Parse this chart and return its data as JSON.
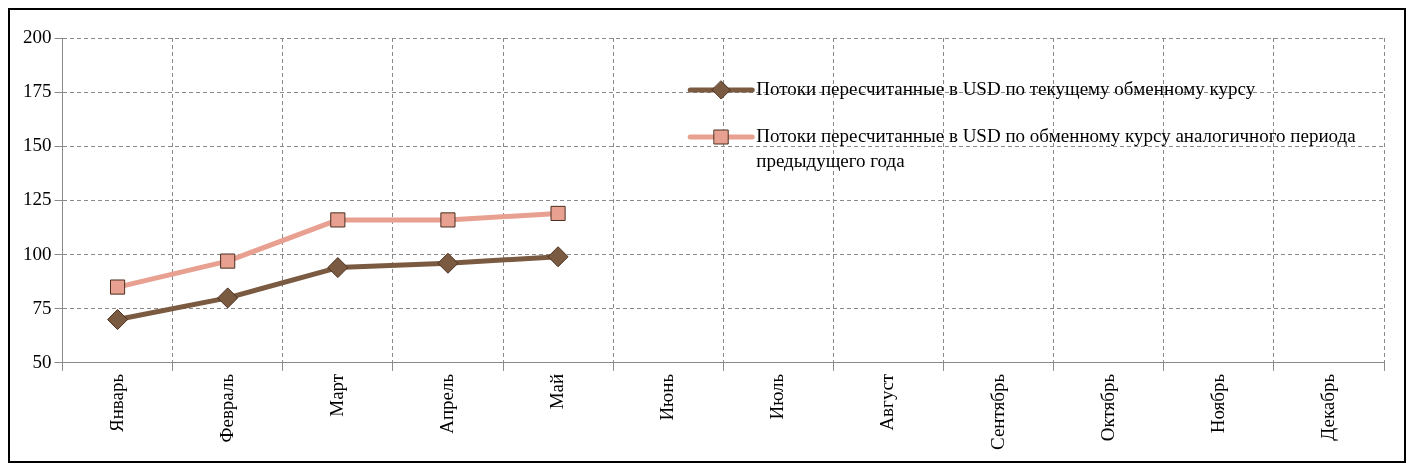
{
  "chart_data": {
    "type": "line",
    "categories": [
      "Январь",
      "Февраль",
      "Март",
      "Апрель",
      "Май",
      "Июнь",
      "Июль",
      "Август",
      "Сентябрь",
      "Октябрь",
      "Ноябрь",
      "Декабрь"
    ],
    "series": [
      {
        "name": "Потоки пересчитанные в USD по текущему обменному курсу",
        "color": "#7a5a40",
        "marker": "diamond",
        "values": [
          70,
          80,
          94,
          96,
          99,
          null,
          null,
          null,
          null,
          null,
          null,
          null
        ]
      },
      {
        "name": "Потоки пересчитанные в USD по обменному курсу аналогичного периода предыдущего года",
        "color": "#e8a090",
        "marker": "square",
        "values": [
          85,
          97,
          116,
          116,
          119,
          null,
          null,
          null,
          null,
          null,
          null,
          null
        ]
      }
    ],
    "ylim": [
      50,
      200
    ],
    "yticks": [
      50,
      75,
      100,
      125,
      150,
      175,
      200
    ],
    "grid": true,
    "legend": "top right"
  }
}
